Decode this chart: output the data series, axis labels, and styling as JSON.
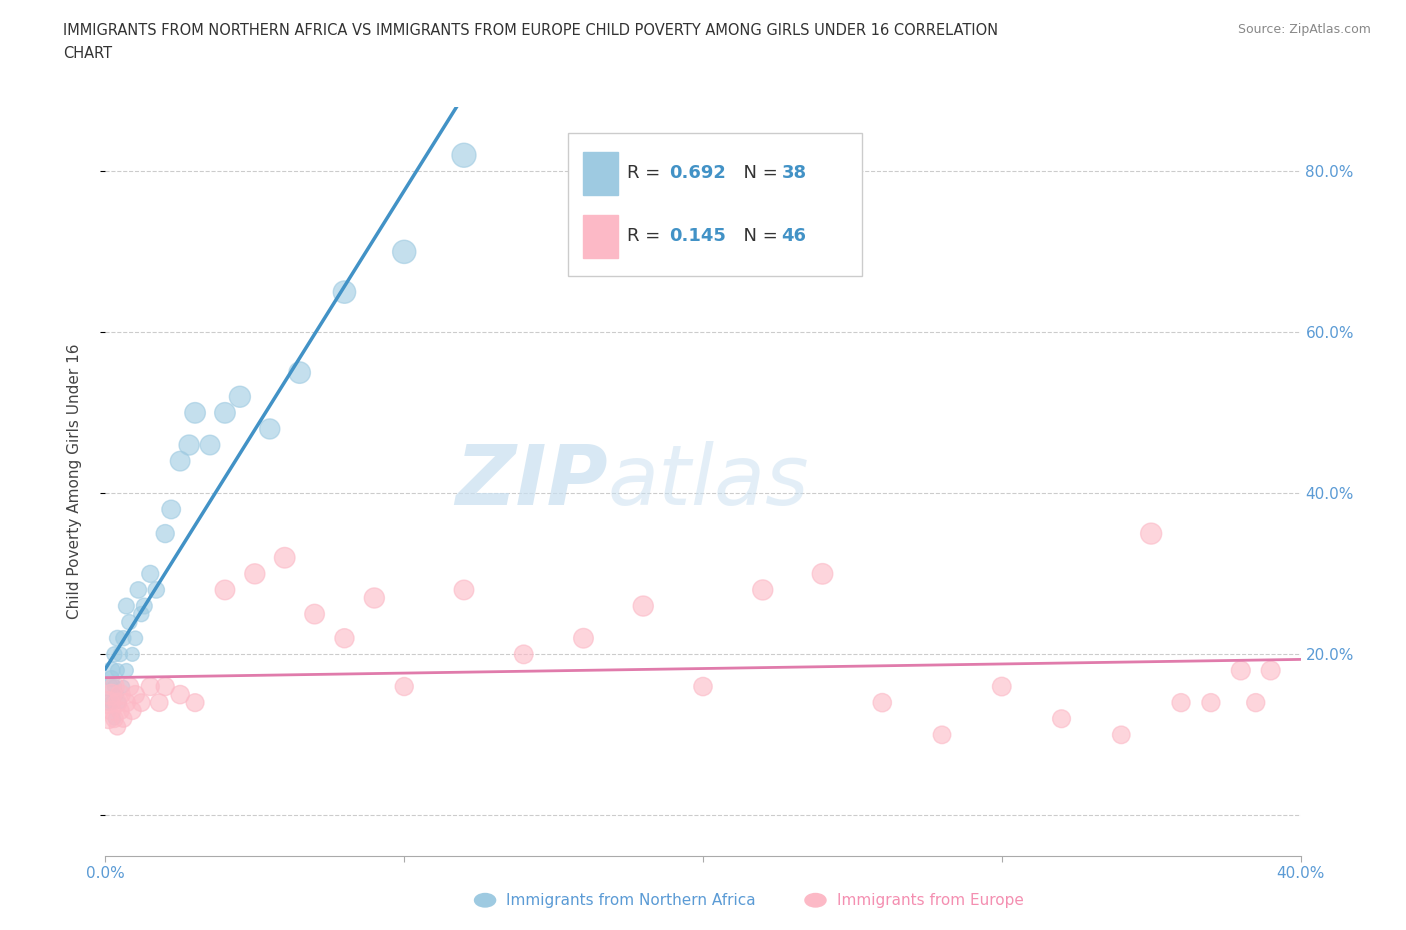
{
  "title_line1": "IMMIGRANTS FROM NORTHERN AFRICA VS IMMIGRANTS FROM EUROPE CHILD POVERTY AMONG GIRLS UNDER 16 CORRELATION",
  "title_line2": "CHART",
  "source": "Source: ZipAtlas.com",
  "ylabel": "Child Poverty Among Girls Under 16",
  "xlim": [
    0.0,
    0.4
  ],
  "ylim": [
    -0.05,
    0.88
  ],
  "color_blue": "#9ecae1",
  "color_pink": "#fcb9c6",
  "color_blue_line": "#4292c6",
  "color_pink_line": "#e07bab",
  "R_blue": 0.692,
  "N_blue": 38,
  "R_pink": 0.145,
  "N_pink": 46,
  "legend_label_blue": "Immigrants from Northern Africa",
  "legend_label_pink": "Immigrants from Europe",
  "watermark_ZIP": "ZIP",
  "watermark_atlas": "atlas",
  "blue_x": [
    0.001,
    0.001,
    0.002,
    0.002,
    0.002,
    0.003,
    0.003,
    0.003,
    0.004,
    0.004,
    0.004,
    0.005,
    0.005,
    0.006,
    0.006,
    0.007,
    0.007,
    0.008,
    0.009,
    0.01,
    0.011,
    0.012,
    0.013,
    0.015,
    0.017,
    0.02,
    0.022,
    0.025,
    0.028,
    0.03,
    0.035,
    0.04,
    0.045,
    0.055,
    0.065,
    0.08,
    0.1,
    0.12
  ],
  "blue_y": [
    0.14,
    0.16,
    0.14,
    0.17,
    0.18,
    0.12,
    0.16,
    0.2,
    0.15,
    0.18,
    0.22,
    0.14,
    0.2,
    0.16,
    0.22,
    0.18,
    0.26,
    0.24,
    0.2,
    0.22,
    0.28,
    0.25,
    0.26,
    0.3,
    0.28,
    0.35,
    0.38,
    0.44,
    0.46,
    0.5,
    0.46,
    0.5,
    0.52,
    0.48,
    0.55,
    0.65,
    0.7,
    0.82
  ],
  "pink_x": [
    0.001,
    0.001,
    0.002,
    0.002,
    0.003,
    0.003,
    0.004,
    0.004,
    0.005,
    0.005,
    0.006,
    0.007,
    0.008,
    0.009,
    0.01,
    0.012,
    0.015,
    0.018,
    0.02,
    0.025,
    0.03,
    0.04,
    0.05,
    0.06,
    0.07,
    0.08,
    0.09,
    0.1,
    0.12,
    0.14,
    0.16,
    0.18,
    0.2,
    0.22,
    0.24,
    0.26,
    0.28,
    0.3,
    0.32,
    0.34,
    0.35,
    0.36,
    0.37,
    0.38,
    0.385,
    0.39
  ],
  "pink_y": [
    0.12,
    0.14,
    0.13,
    0.15,
    0.12,
    0.16,
    0.11,
    0.14,
    0.13,
    0.15,
    0.12,
    0.14,
    0.16,
    0.13,
    0.15,
    0.14,
    0.16,
    0.14,
    0.16,
    0.15,
    0.14,
    0.28,
    0.3,
    0.32,
    0.25,
    0.22,
    0.27,
    0.16,
    0.28,
    0.2,
    0.22,
    0.26,
    0.16,
    0.28,
    0.3,
    0.14,
    0.1,
    0.16,
    0.12,
    0.1,
    0.35,
    0.14,
    0.14,
    0.18,
    0.14,
    0.18
  ],
  "blue_sizes": [
    120,
    180,
    100,
    130,
    150,
    80,
    100,
    120,
    80,
    100,
    130,
    70,
    110,
    80,
    120,
    100,
    130,
    120,
    100,
    110,
    140,
    120,
    130,
    150,
    140,
    170,
    180,
    200,
    210,
    220,
    200,
    220,
    230,
    210,
    240,
    260,
    280,
    300
  ],
  "pink_sizes": [
    200,
    250,
    180,
    220,
    160,
    200,
    140,
    180,
    160,
    200,
    150,
    170,
    180,
    160,
    170,
    160,
    170,
    160,
    170,
    175,
    165,
    200,
    210,
    220,
    200,
    190,
    210,
    170,
    200,
    180,
    200,
    210,
    175,
    210,
    220,
    175,
    160,
    180,
    165,
    160,
    230,
    170,
    170,
    185,
    170,
    185
  ]
}
